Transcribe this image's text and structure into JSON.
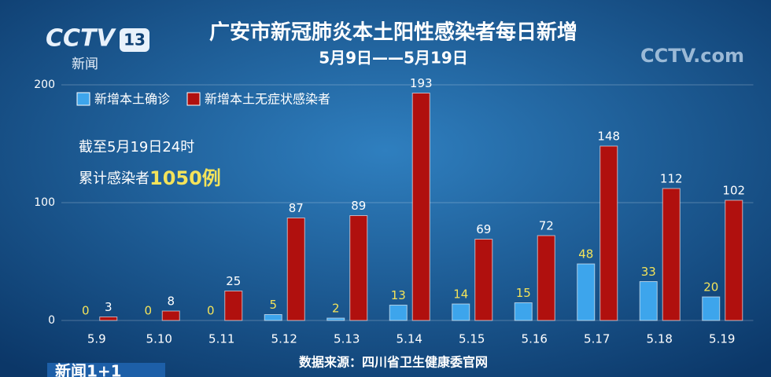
{
  "chart_data": {
    "type": "bar",
    "title": "广安市新冠肺炎本土阳性感染者每日新增",
    "subtitle": "5月9日——5月19日",
    "categories": [
      "5.9",
      "5.10",
      "5.11",
      "5.12",
      "5.13",
      "5.14",
      "5.15",
      "5.16",
      "5.17",
      "5.18",
      "5.19"
    ],
    "series": [
      {
        "name": "新增本土确诊",
        "color": "#3da5ec",
        "label_color": "#f3e35a",
        "values": [
          0,
          0,
          0,
          5,
          2,
          13,
          14,
          15,
          48,
          33,
          20
        ]
      },
      {
        "name": "新增本土无症状感染者",
        "color": "#b0100e",
        "label_color": "#ffffff",
        "values": [
          3,
          8,
          25,
          87,
          89,
          193,
          69,
          72,
          148,
          112,
          102
        ]
      }
    ],
    "ylim": [
      0,
      200
    ],
    "yticks": [
      0,
      100,
      200
    ],
    "grid": true,
    "legend": "top-left",
    "annotations": {
      "cutoff": "截至5月19日24时",
      "total_label": "累计感染者",
      "total_value": "1050例"
    },
    "source": "数据来源：四川省卫生健康委官网"
  },
  "logos": {
    "channel": "CCTV",
    "channel_number": "13",
    "program": "新闻",
    "web": "CCTV.com",
    "show": "新闻1+1"
  }
}
